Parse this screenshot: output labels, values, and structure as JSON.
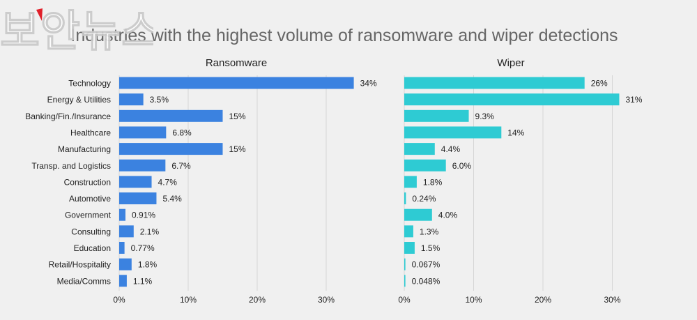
{
  "chart_data": {
    "type": "bar",
    "orientation": "horizontal",
    "title": "Industries with the highest volume of ransomware and wiper detections",
    "categories": [
      "Technology",
      "Energy & Utilities",
      "Banking/Fin./Insurance",
      "Healthcare",
      "Manufacturing",
      "Transp. and Logistics",
      "Construction",
      "Automotive",
      "Government",
      "Consulting",
      "Education",
      "Retail/Hospitality",
      "Media/Comms"
    ],
    "panels": [
      {
        "name": "Ransomware",
        "color": "#3b82e0",
        "values": [
          34,
          3.5,
          15,
          6.8,
          15,
          6.7,
          4.7,
          5.4,
          0.91,
          2.1,
          0.77,
          1.8,
          1.1
        ],
        "labels": [
          "34%",
          "3.5%",
          "15%",
          "6.8%",
          "15%",
          "6.7%",
          "4.7%",
          "5.4%",
          "0.91%",
          "2.1%",
          "0.77%",
          "1.8%",
          "1.1%"
        ],
        "xlim": [
          0,
          34
        ],
        "ticks": [
          "0%",
          "10%",
          "20%",
          "30%"
        ],
        "tick_values": [
          0,
          10,
          20,
          30
        ]
      },
      {
        "name": "Wiper",
        "color": "#2ecbd3",
        "values": [
          26,
          31,
          9.3,
          14,
          4.4,
          6.0,
          1.8,
          0.24,
          4.0,
          1.3,
          1.5,
          0.067,
          0.048
        ],
        "labels": [
          "26%",
          "31%",
          "9.3%",
          "14%",
          "4.4%",
          "6.0%",
          "1.8%",
          "0.24%",
          "4.0%",
          "1.3%",
          "1.5%",
          "0.067%",
          "0.048%"
        ],
        "xlim": [
          0,
          31
        ],
        "ticks": [
          "0%",
          "10%",
          "20%",
          "30%"
        ],
        "tick_values": [
          0,
          10,
          20,
          30
        ]
      }
    ],
    "grid": true,
    "legend": "none"
  },
  "watermark": {
    "text": "보안뉴스",
    "accent_color": "#e0202a"
  }
}
